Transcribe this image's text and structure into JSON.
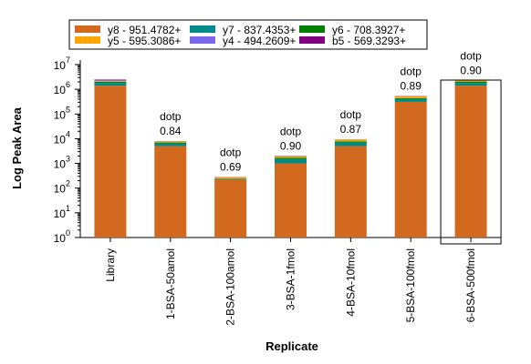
{
  "chart_data": {
    "type": "bar",
    "stacked": true,
    "title": "",
    "xlabel": "Replicate",
    "ylabel": "Log Peak Area",
    "yscale": "log",
    "ylim": [
      1,
      10000000
    ],
    "y_tick_labels": [
      {
        "base": "10",
        "exp": "0"
      },
      {
        "base": "10",
        "exp": "1"
      },
      {
        "base": "10",
        "exp": "2"
      },
      {
        "base": "10",
        "exp": "3"
      },
      {
        "base": "10",
        "exp": "4"
      },
      {
        "base": "10",
        "exp": "5"
      },
      {
        "base": "10",
        "exp": "6"
      },
      {
        "base": "10",
        "exp": "7"
      }
    ],
    "categories": [
      "Library",
      "1-BSA-50amol",
      "2-BSA-100amol",
      "3-BSA-1fmol",
      "4-BSA-10fmol",
      "5-BSA-100fmol",
      "6-BSA-500fmol"
    ],
    "legend_position": "top",
    "series": [
      {
        "name": "y8 - 951.4782+",
        "color": "#d2691e",
        "values": [
          1400000,
          5000,
          220,
          1000,
          5000,
          310000,
          1400000
        ]
      },
      {
        "name": "y7 - 837.4353+",
        "color": "#008b8b",
        "values": [
          400000,
          1500,
          10,
          500,
          2000,
          90000,
          400000
        ]
      },
      {
        "name": "y6 - 708.3927+",
        "color": "#008000",
        "values": [
          200000,
          500,
          10,
          200,
          800,
          40000,
          250000
        ]
      },
      {
        "name": "y5 - 595.3086+",
        "color": "#ffa500",
        "values": [
          150000,
          800,
          30,
          200,
          1500,
          80000,
          200000
        ]
      },
      {
        "name": "y4 - 494.2609+",
        "color": "#7b68ee",
        "values": [
          250000,
          100,
          5,
          50,
          100,
          10000,
          40000
        ]
      },
      {
        "name": "b5 - 569.3293+",
        "color": "#800080",
        "values": [
          100000,
          100,
          5,
          50,
          100,
          10000,
          10000
        ]
      }
    ],
    "annotations": [
      null,
      {
        "label": "dotp",
        "value": "0.84"
      },
      {
        "label": "dotp",
        "value": "0.69"
      },
      {
        "label": "dotp",
        "value": "0.90"
      },
      {
        "label": "dotp",
        "value": "0.87"
      },
      {
        "label": "dotp",
        "value": "0.89"
      },
      {
        "label": "dotp",
        "value": "0.90"
      }
    ],
    "selected_category": "6-BSA-500fmol",
    "legend_order": [
      "y8 - 951.4782+",
      "y7 - 837.4353+",
      "y6 - 708.3927+",
      "y5 - 595.3086+",
      "y4 - 494.2609+",
      "b5 - 569.3293+"
    ]
  }
}
